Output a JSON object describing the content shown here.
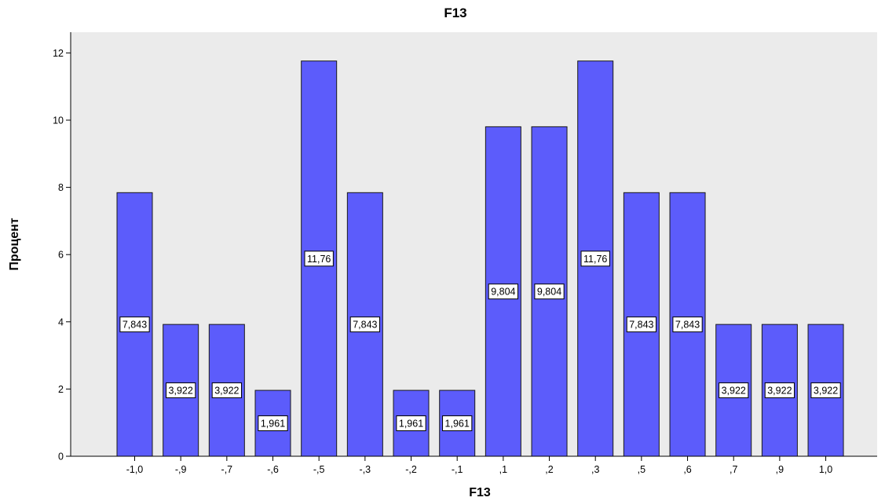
{
  "colors": {
    "plot_background": "#ebebeb",
    "bar_fill": "#5c5cfb",
    "bar_stroke": "#1a1a1a",
    "label_box": "#ffffff"
  },
  "chart_data": {
    "type": "bar",
    "title": "F13",
    "xlabel": "F13",
    "ylabel": "Процент",
    "ylim": [
      0,
      12.6
    ],
    "yticks": [
      0,
      2,
      4,
      6,
      8,
      10,
      12
    ],
    "grid": false,
    "legend": "none",
    "categories": [
      "-1,0",
      "-,9",
      "-,7",
      "-,6",
      "-,5",
      "-,3",
      "-,2",
      "-,1",
      ",1",
      ",2",
      ",3",
      ",5",
      ",6",
      ",7",
      ",9",
      "1,0"
    ],
    "values": [
      7.843,
      3.922,
      3.922,
      1.961,
      11.76,
      7.843,
      1.961,
      1.961,
      9.804,
      9.804,
      11.76,
      7.843,
      7.843,
      3.922,
      3.922,
      3.922
    ],
    "data_labels": [
      "7,843",
      "3,922",
      "3,922",
      "1,961",
      "11,76",
      "7,843",
      "1,961",
      "1,961",
      "9,804",
      "9,804",
      "11,76",
      "7,843",
      "7,843",
      "3,922",
      "3,922",
      "3,922"
    ]
  }
}
